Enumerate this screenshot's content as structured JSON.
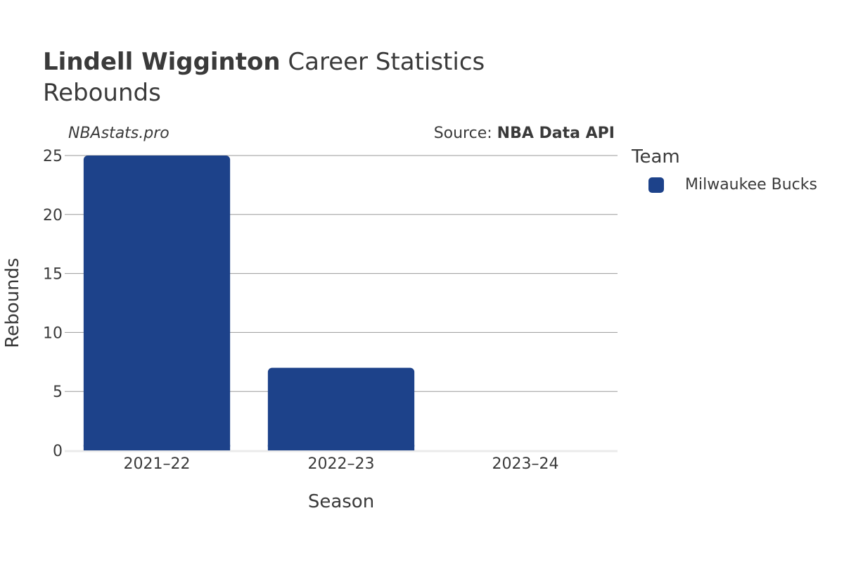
{
  "header": {
    "player_name": "Lindell Wigginton",
    "title_rest": " Career Statistics",
    "subtitle": "Rebounds"
  },
  "watermark": "NBAstats.pro",
  "source": {
    "prefix": "Source: ",
    "name": "NBA Data API"
  },
  "legend": {
    "title": "Team",
    "items": [
      {
        "label": "Milwaukee Bucks",
        "color": "#1d428a"
      }
    ]
  },
  "chart_data": {
    "type": "bar",
    "categories": [
      "2021–22",
      "2022–23",
      "2023–24"
    ],
    "series": [
      {
        "name": "Milwaukee Bucks",
        "values": [
          25,
          7,
          0
        ],
        "color": "#1d428a"
      }
    ],
    "xlabel": "Season",
    "ylabel": "Rebounds",
    "ylim": [
      0,
      25
    ],
    "yticks": [
      0,
      5,
      10,
      15,
      20,
      25
    ],
    "grid": true,
    "legend_position": "right"
  }
}
